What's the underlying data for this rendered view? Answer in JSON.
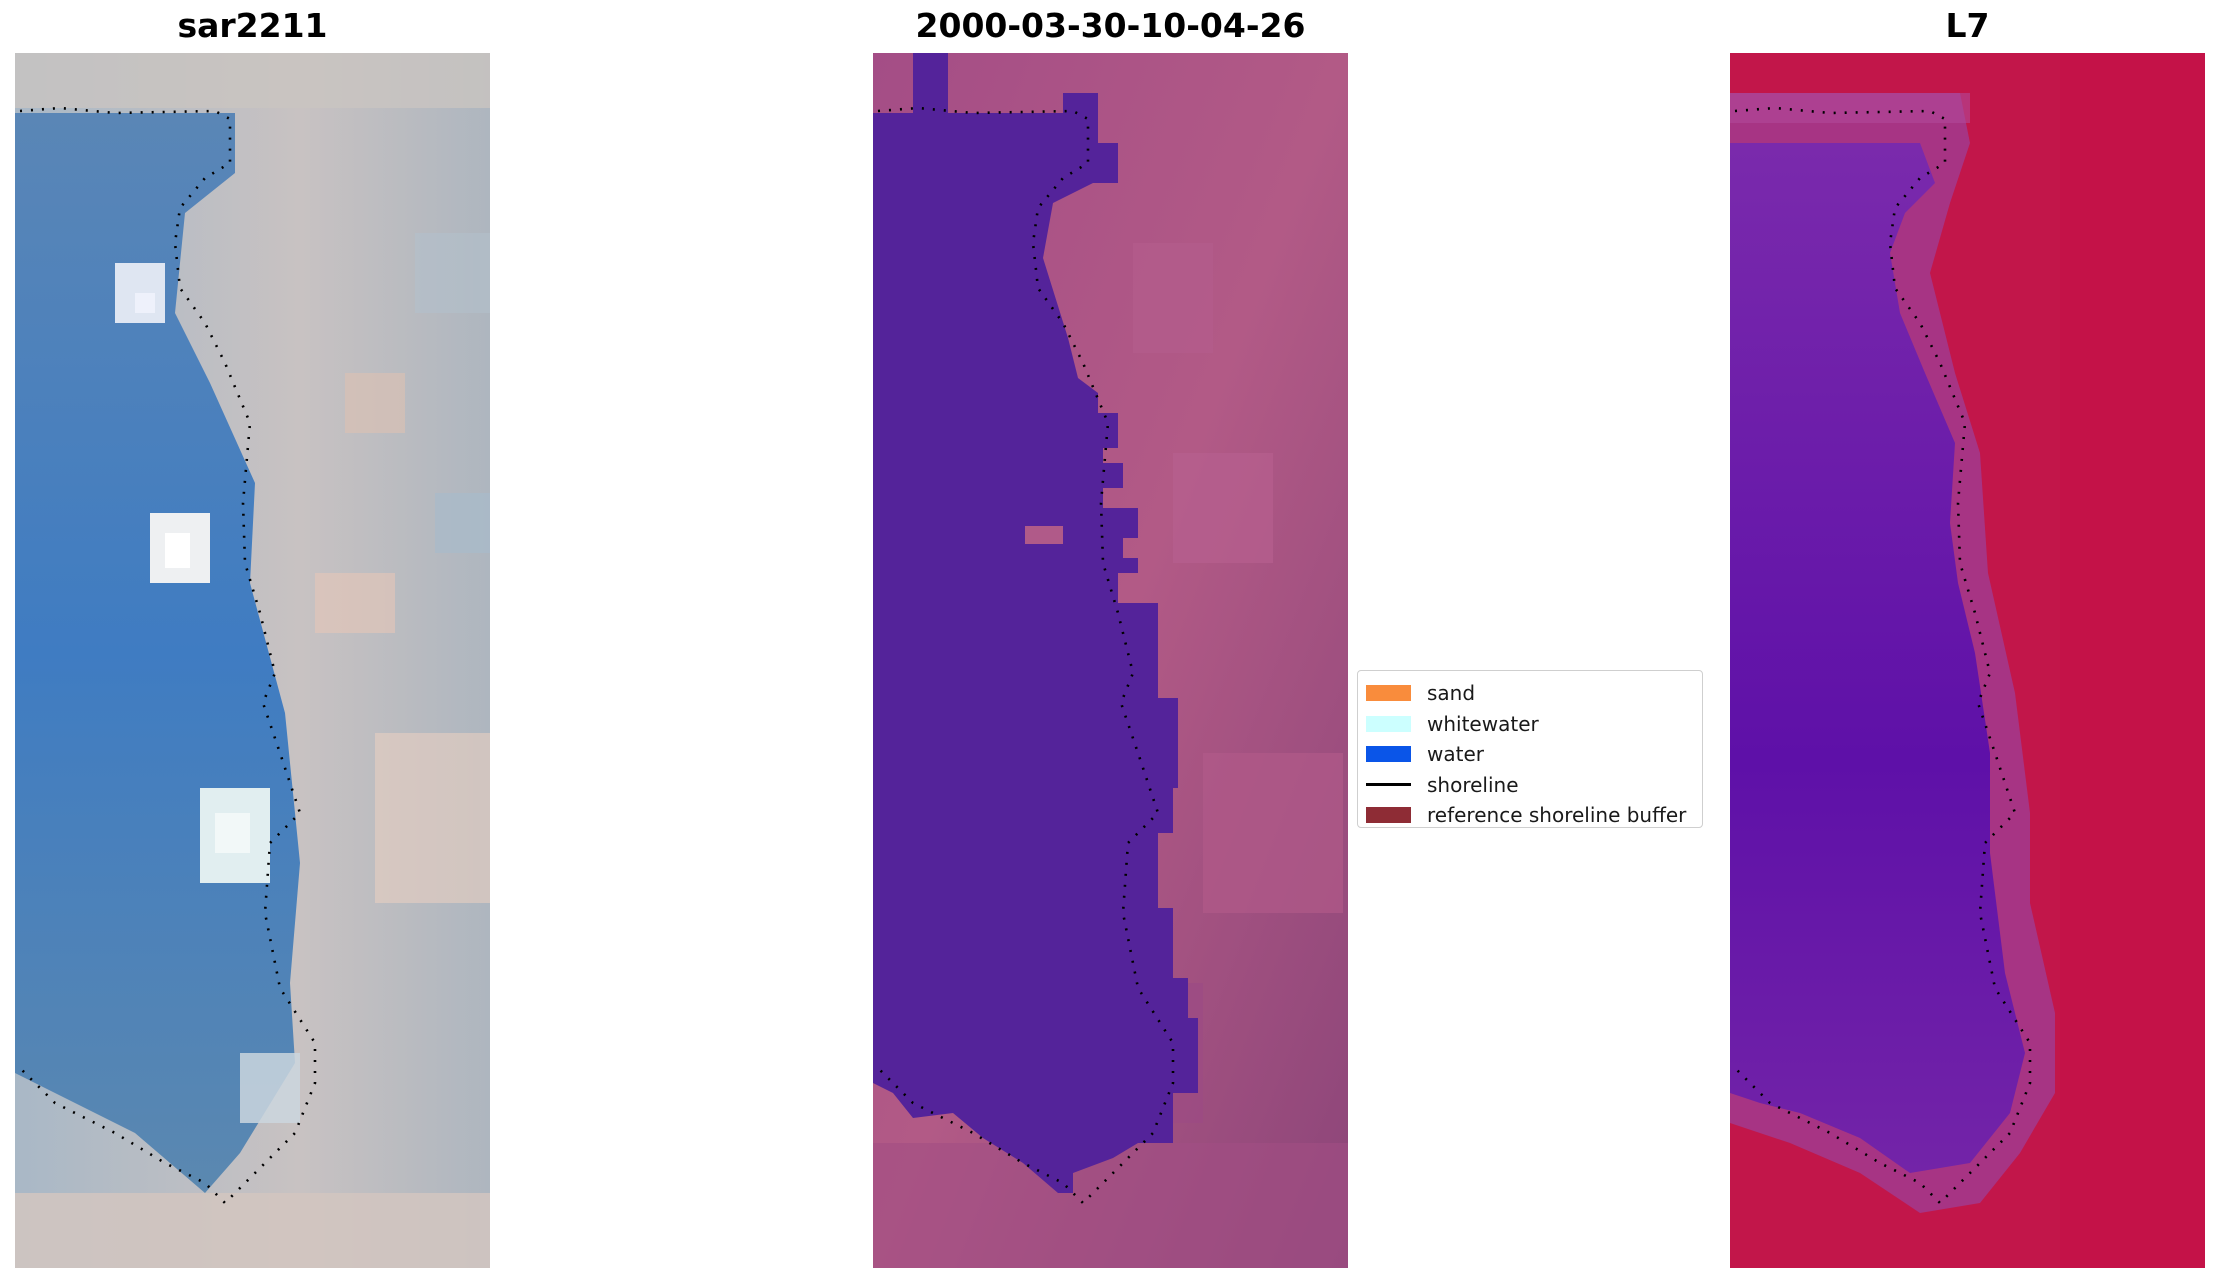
{
  "panels": [
    {
      "id": "rgb",
      "title": "sar2211",
      "image": "rgb-composite"
    },
    {
      "id": "class",
      "title": "2000-03-30-10-04-26",
      "image": "classified-image"
    },
    {
      "id": "index",
      "title": "L7",
      "image": "water-index-image"
    }
  ],
  "legend": {
    "items": [
      {
        "label": "sand",
        "color": "#f98c3c",
        "kind": "patch"
      },
      {
        "label": "whitewater",
        "color": "#ccffff",
        "kind": "patch"
      },
      {
        "label": "water",
        "color": "#0a55e8",
        "kind": "patch"
      },
      {
        "label": "shoreline",
        "color": "#000000",
        "kind": "line"
      },
      {
        "label": "reference shoreline buffer",
        "color": "#8e2c35",
        "kind": "patch"
      }
    ]
  },
  "colors": {
    "rgb_water": "#4a7fb8",
    "rgb_land": "#b9bcc4",
    "rgb_whitewater": "#f2f4f6",
    "class_water": "#54239a",
    "class_land": "#a14f82",
    "index_water": "#6a1ea8",
    "index_land": "#c2164a",
    "shoreline": "#000000"
  }
}
